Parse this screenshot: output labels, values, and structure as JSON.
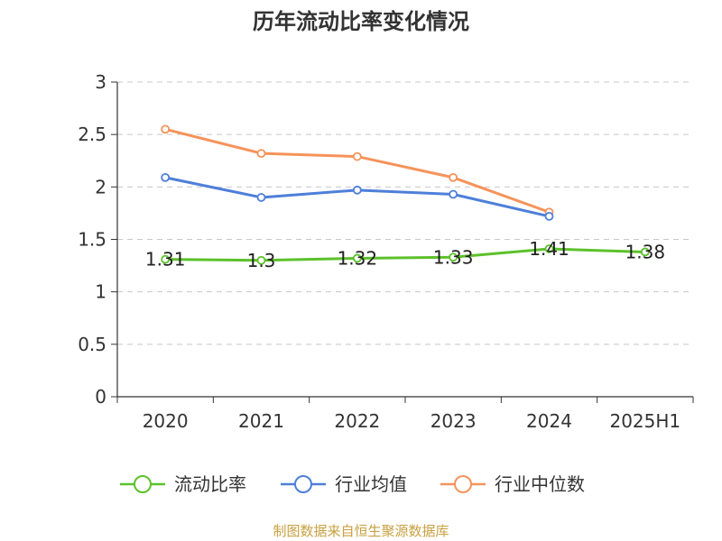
{
  "chart_data": {
    "type": "line",
    "title": "历年流动比率变化情况",
    "categories": [
      "2020",
      "2021",
      "2022",
      "2023",
      "2024",
      "2025H1"
    ],
    "ylim": [
      0,
      3
    ],
    "yticks": [
      "0",
      "0.5",
      "1",
      "1.5",
      "2",
      "2.5",
      "3"
    ],
    "grid": true,
    "legend_position": "bottom",
    "series": [
      {
        "name": "流动比率",
        "color": "#5cc12b",
        "values": [
          1.31,
          1.3,
          1.32,
          1.33,
          1.41,
          1.38
        ],
        "labels": [
          "1.31",
          "1.3",
          "1.32",
          "1.33",
          "1.41",
          "1.38"
        ]
      },
      {
        "name": "行业均值",
        "color": "#4e7fd9",
        "values": [
          2.09,
          1.9,
          1.97,
          1.93,
          1.72,
          null
        ]
      },
      {
        "name": "行业中位数",
        "color": "#f5935a",
        "values": [
          2.55,
          2.32,
          2.29,
          2.09,
          1.76,
          null
        ]
      }
    ],
    "source": "制图数据来自恒生聚源数据库"
  }
}
